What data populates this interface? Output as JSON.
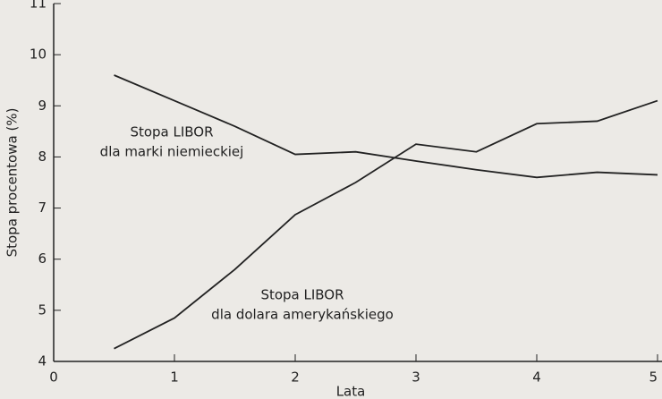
{
  "chart_data": {
    "type": "line",
    "x_label": "Lata",
    "y_label": "Stopa procentowa (%)",
    "xlim": [
      0,
      5
    ],
    "xticks": [
      0,
      1,
      2,
      3,
      4,
      5
    ],
    "ylim": [
      4,
      11
    ],
    "yticks": [
      4,
      5,
      6,
      7,
      8,
      9,
      10,
      11
    ],
    "grid": false,
    "x": [
      0.5,
      1,
      1.5,
      2,
      2.5,
      3,
      3.5,
      4,
      4.5,
      5
    ],
    "series": [
      {
        "color": "#222222",
        "values": [
          9.6,
          9.1,
          8.6,
          8.05,
          8.1,
          7.92,
          7.75,
          7.6,
          7.7,
          7.65
        ]
      },
      {
        "color": "#222222",
        "values": [
          4.25,
          4.85,
          5.8,
          6.87,
          7.5,
          8.25,
          8.1,
          8.65,
          8.7,
          9.1
        ]
      }
    ],
    "annotations": [
      [
        "Stopa LIBOR",
        "dla marki niemieckiej"
      ],
      [
        "Stopa LIBOR",
        "dla dolara amerykańskiego"
      ]
    ]
  }
}
